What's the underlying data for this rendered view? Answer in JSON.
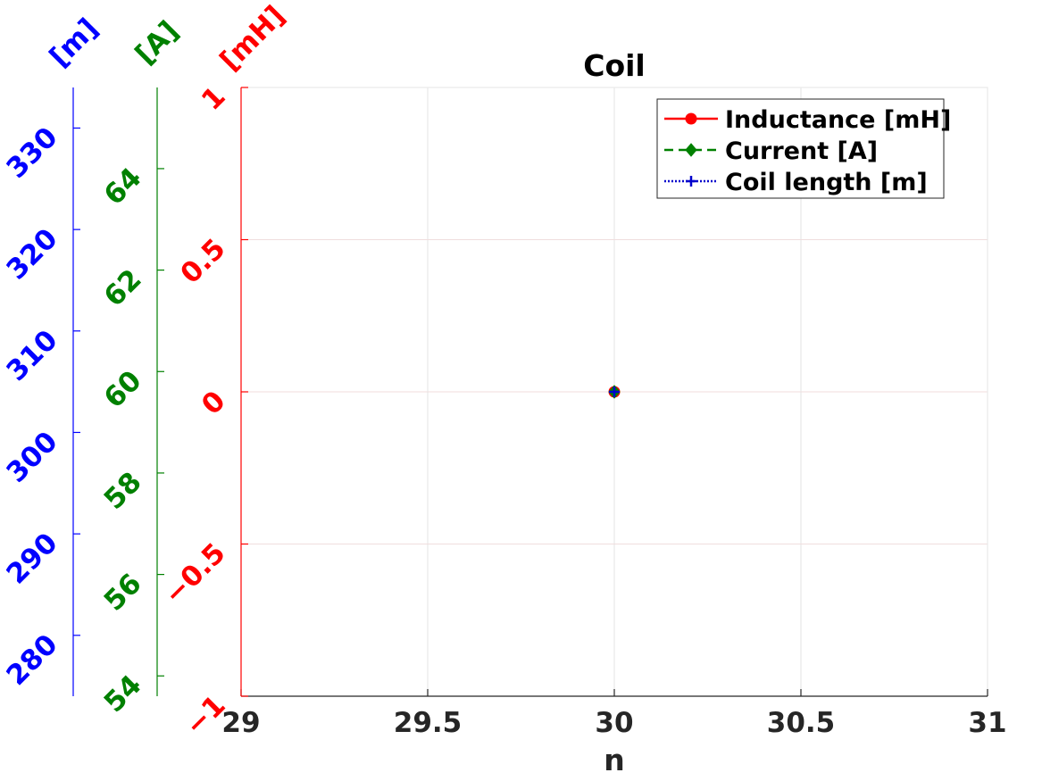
{
  "chart_data": {
    "type": "line",
    "title": "Coil",
    "xlabel": "n",
    "xlim": [
      29,
      31
    ],
    "x_ticks": [
      "29",
      "29.5",
      "30",
      "30.5",
      "31"
    ],
    "grid": true,
    "legend_position": "top-right",
    "axes": [
      {
        "id": "inductance",
        "unit_label": "[mH]",
        "color": "#ff0000",
        "ylim": [
          -1,
          1
        ],
        "ticks": [
          "−1",
          "−0.5",
          "0",
          "0.5",
          "1"
        ]
      },
      {
        "id": "current",
        "unit_label": "[A]",
        "color": "#008000",
        "ylim": [
          53.6,
          65.6
        ],
        "ticks": [
          "54",
          "56",
          "58",
          "60",
          "62",
          "64"
        ]
      },
      {
        "id": "length",
        "unit_label": "[m]",
        "color": "#0000ff",
        "ylim": [
          274,
          334
        ],
        "ticks": [
          "280",
          "290",
          "300",
          "310",
          "320",
          "330"
        ]
      }
    ],
    "series": [
      {
        "name": "Inductance [mH]",
        "axis": "inductance",
        "color": "#ff0000",
        "line": "solid",
        "marker": "circle",
        "x": [
          30
        ],
        "y": [
          0
        ]
      },
      {
        "name": "Current [A]",
        "axis": "current",
        "color": "#008000",
        "line": "dashed",
        "marker": "diamond",
        "x": [
          30
        ],
        "y": [
          59.6
        ]
      },
      {
        "name": "Coil length [m]",
        "axis": "length",
        "color": "#0000cc",
        "line": "dotted",
        "marker": "plus",
        "x": [
          30
        ],
        "y": [
          304
        ]
      }
    ]
  }
}
